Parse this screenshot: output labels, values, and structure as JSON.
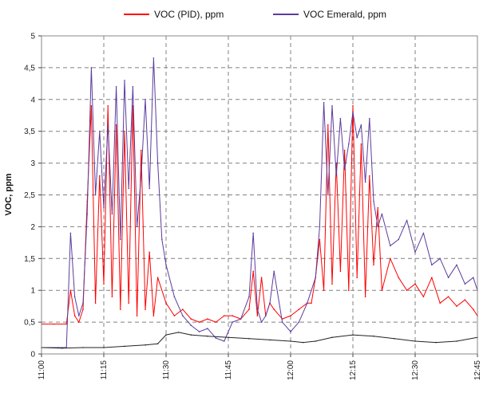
{
  "chart_data": {
    "type": "line",
    "title": "",
    "xlabel": "",
    "ylabel": "VOC, ppm",
    "ylim": [
      0,
      5
    ],
    "yticks": [
      0,
      0.5,
      1,
      1.5,
      2,
      2.5,
      3,
      3.5,
      4,
      4.5,
      5
    ],
    "ytick_labels": [
      "0",
      "0,5",
      "1",
      "1,5",
      "2",
      "2,5",
      "3",
      "3,5",
      "4",
      "4,5",
      "5"
    ],
    "xlim": [
      "11:00",
      "12:45"
    ],
    "xtick_labels": [
      "11:00",
      "11:15",
      "11:30",
      "11:45",
      "12:00",
      "12:15",
      "12:30",
      "12:45"
    ],
    "grid": true,
    "legend_position": "top",
    "series": [
      {
        "name": "VOC (PID), ppm",
        "color": "#ff0000",
        "x": [
          "11:00",
          "11:03",
          "11:06",
          "11:07",
          "11:08",
          "11:09",
          "11:10",
          "11:11",
          "11:12",
          "11:13",
          "11:14",
          "11:15",
          "11:16",
          "11:17",
          "11:18",
          "11:19",
          "11:20",
          "11:21",
          "11:22",
          "11:23",
          "11:24",
          "11:25",
          "11:26",
          "11:27",
          "11:28",
          "11:30",
          "11:32",
          "11:34",
          "11:36",
          "11:38",
          "11:40",
          "11:42",
          "11:44",
          "11:46",
          "11:48",
          "11:50",
          "11:51",
          "11:52",
          "11:53",
          "11:54",
          "11:55",
          "11:56",
          "11:58",
          "12:00",
          "12:02",
          "12:04",
          "12:05",
          "12:06",
          "12:07",
          "12:08",
          "12:09",
          "12:10",
          "12:11",
          "12:12",
          "12:13",
          "12:14",
          "12:15",
          "12:16",
          "12:17",
          "12:18",
          "12:19",
          "12:20",
          "12:21",
          "12:22",
          "12:24",
          "12:26",
          "12:28",
          "12:30",
          "12:32",
          "12:34",
          "12:36",
          "12:38",
          "12:40",
          "12:42",
          "12:44",
          "12:45"
        ],
        "values": [
          0.47,
          0.47,
          0.47,
          1.0,
          0.6,
          0.5,
          0.7,
          2.4,
          3.9,
          0.8,
          2.8,
          1.1,
          3.9,
          0.9,
          3.6,
          0.7,
          3.5,
          0.8,
          3.9,
          0.6,
          3.2,
          0.7,
          1.6,
          0.6,
          1.2,
          0.8,
          0.6,
          0.7,
          0.55,
          0.5,
          0.55,
          0.5,
          0.6,
          0.6,
          0.55,
          0.7,
          1.3,
          0.6,
          1.2,
          0.6,
          0.8,
          0.7,
          0.55,
          0.6,
          0.7,
          0.8,
          0.8,
          1.2,
          1.8,
          1.0,
          3.6,
          1.1,
          3.0,
          1.3,
          3.2,
          1.0,
          3.9,
          1.2,
          3.3,
          0.9,
          2.8,
          1.4,
          2.3,
          1.0,
          1.5,
          1.2,
          1.0,
          1.1,
          0.9,
          1.2,
          0.8,
          0.9,
          0.75,
          0.85,
          0.7,
          0.6
        ]
      },
      {
        "name": "VOC Emerald, ppm",
        "color": "#5b3c9e",
        "x": [
          "11:00",
          "11:04",
          "11:06",
          "11:07",
          "11:08",
          "11:09",
          "11:10",
          "11:11",
          "11:12",
          "11:13",
          "11:14",
          "11:15",
          "11:16",
          "11:17",
          "11:18",
          "11:19",
          "11:20",
          "11:21",
          "11:22",
          "11:23",
          "11:24",
          "11:25",
          "11:26",
          "11:27",
          "11:28",
          "11:29",
          "11:30",
          "11:32",
          "11:34",
          "11:36",
          "11:38",
          "11:40",
          "11:42",
          "11:44",
          "11:46",
          "11:48",
          "11:50",
          "11:51",
          "11:52",
          "11:53",
          "11:54",
          "11:55",
          "11:56",
          "11:58",
          "12:00",
          "12:02",
          "12:04",
          "12:06",
          "12:07",
          "12:08",
          "12:09",
          "12:10",
          "12:11",
          "12:12",
          "12:13",
          "12:14",
          "12:15",
          "12:16",
          "12:17",
          "12:18",
          "12:19",
          "12:20",
          "12:21",
          "12:22",
          "12:24",
          "12:26",
          "12:28",
          "12:30",
          "12:32",
          "12:34",
          "12:36",
          "12:38",
          "12:40",
          "12:42",
          "12:44",
          "12:45"
        ],
        "values": [
          0.1,
          0.1,
          0.1,
          1.9,
          0.9,
          0.6,
          0.8,
          2.2,
          4.5,
          2.5,
          3.5,
          2.3,
          3.6,
          2.2,
          4.2,
          1.8,
          4.3,
          2.6,
          4.2,
          2.0,
          2.8,
          4.0,
          2.6,
          4.65,
          3.0,
          1.8,
          1.4,
          0.9,
          0.6,
          0.45,
          0.35,
          0.4,
          0.25,
          0.2,
          0.5,
          0.55,
          0.9,
          1.9,
          0.7,
          0.5,
          0.6,
          0.8,
          1.3,
          0.5,
          0.35,
          0.5,
          0.8,
          1.2,
          2.0,
          3.95,
          2.5,
          3.9,
          2.8,
          3.7,
          2.9,
          3.3,
          3.8,
          3.4,
          3.6,
          2.7,
          3.7,
          2.4,
          2.0,
          2.2,
          1.7,
          1.8,
          2.1,
          1.6,
          1.9,
          1.4,
          1.5,
          1.2,
          1.4,
          1.1,
          1.2,
          1.0
        ]
      },
      {
        "name": "",
        "color": "#222222",
        "x": [
          "11:00",
          "11:05",
          "11:10",
          "11:15",
          "11:20",
          "11:25",
          "11:28",
          "11:30",
          "11:33",
          "11:36",
          "11:40",
          "11:45",
          "11:50",
          "11:55",
          "12:00",
          "12:03",
          "12:06",
          "12:10",
          "12:15",
          "12:20",
          "12:25",
          "12:30",
          "12:35",
          "12:40",
          "12:45"
        ],
        "values": [
          0.1,
          0.09,
          0.1,
          0.1,
          0.12,
          0.14,
          0.16,
          0.3,
          0.34,
          0.3,
          0.28,
          0.26,
          0.24,
          0.22,
          0.2,
          0.18,
          0.2,
          0.26,
          0.3,
          0.28,
          0.24,
          0.2,
          0.18,
          0.2,
          0.26
        ]
      }
    ]
  }
}
